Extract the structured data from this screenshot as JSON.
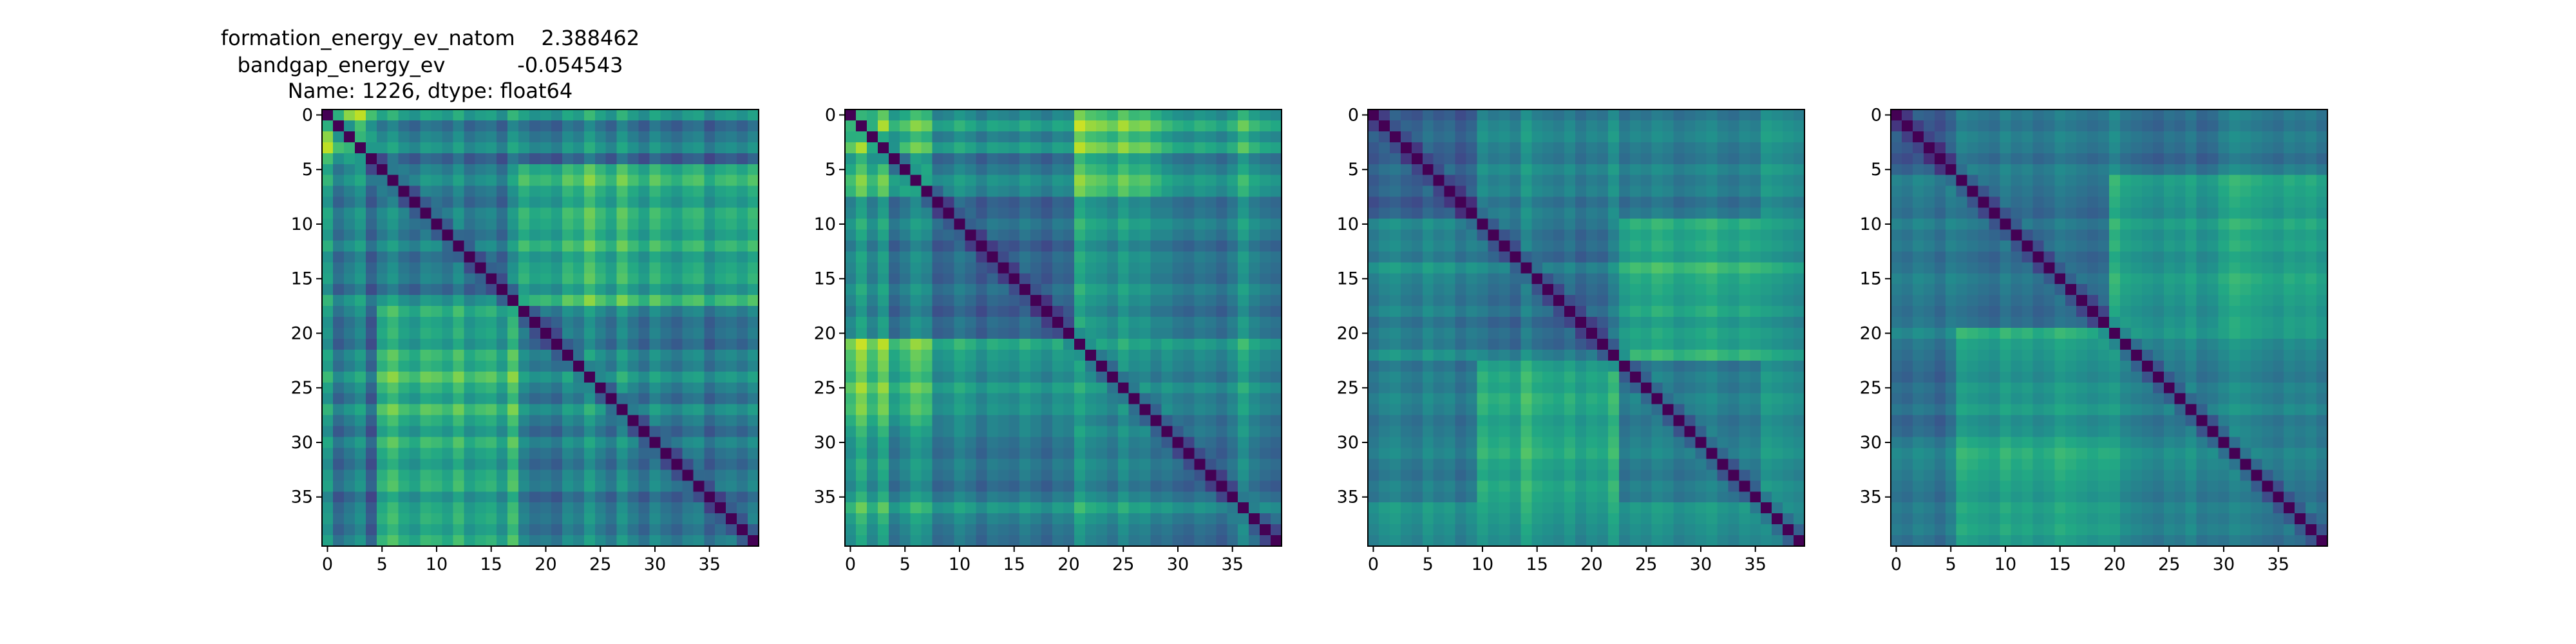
{
  "title_lines": [
    "formation_energy_ev_natom    2.388462",
    "bandgap_energy_ev           -0.054543",
    "Name: 1226, dtype: float64"
  ],
  "chart_data": [
    {
      "type": "heatmap",
      "colormap": "viridis",
      "matrix_size": 40,
      "value_range": [
        0,
        1
      ],
      "diagonal_value": 0,
      "xticks": [
        0,
        5,
        10,
        15,
        20,
        25,
        30,
        35
      ],
      "yticks": [
        0,
        5,
        10,
        15,
        20,
        25,
        30,
        35
      ],
      "block_boundaries": [
        5,
        18
      ],
      "block_levels": [
        [
          0.6,
          0.38,
          0.35
        ],
        [
          0.38,
          0.4,
          0.58
        ],
        [
          0.35,
          0.58,
          0.38
        ]
      ],
      "row_offsets": [
        0.35,
        -0.05,
        0.1,
        0.25,
        -0.15,
        0.05,
        0.2,
        0.0,
        -0.1,
        0.1,
        0.05,
        -0.05,
        0.15,
        -0.1,
        0.0,
        0.05,
        -0.15,
        0.2,
        0.1,
        -0.05,
        0.0,
        -0.1,
        0.15,
        0.05,
        0.3,
        0.1,
        -0.05,
        0.25,
        0.05,
        -0.1,
        0.15,
        0.0,
        -0.1,
        0.05,
        0.1,
        -0.15,
        0.0,
        0.05,
        -0.05,
        0.1
      ]
    },
    {
      "type": "heatmap",
      "colormap": "viridis",
      "matrix_size": 40,
      "value_range": [
        0,
        1
      ],
      "diagonal_value": 0,
      "xticks": [
        0,
        5,
        10,
        15,
        20,
        25,
        30,
        35
      ],
      "yticks": [
        0,
        5,
        10,
        15,
        20,
        25,
        30,
        35
      ],
      "block_boundaries": [
        8,
        21,
        29
      ],
      "block_levels": [
        [
          0.55,
          0.4,
          0.62,
          0.45
        ],
        [
          0.4,
          0.32,
          0.48,
          0.38
        ],
        [
          0.62,
          0.48,
          0.45,
          0.42
        ],
        [
          0.45,
          0.38,
          0.42,
          0.35
        ]
      ],
      "row_offsets": [
        0.1,
        0.35,
        0.05,
        0.3,
        -0.15,
        0.0,
        0.2,
        0.1,
        -0.05,
        0.0,
        0.15,
        0.05,
        -0.1,
        0.05,
        0.0,
        -0.05,
        0.1,
        0.0,
        -0.1,
        0.05,
        0.0,
        0.25,
        0.1,
        0.05,
        -0.05,
        0.15,
        0.0,
        0.05,
        -0.1,
        0.1,
        0.0,
        -0.05,
        0.05,
        0.0,
        -0.1,
        0.05,
        0.3,
        0.1,
        0.0,
        -0.05
      ]
    },
    {
      "type": "heatmap",
      "colormap": "viridis",
      "matrix_size": 40,
      "value_range": [
        0,
        1
      ],
      "diagonal_value": 0,
      "xticks": [
        0,
        5,
        10,
        15,
        20,
        25,
        30,
        35
      ],
      "yticks": [
        0,
        5,
        10,
        15,
        20,
        25,
        30,
        35
      ],
      "block_boundaries": [
        10,
        23,
        36
      ],
      "block_levels": [
        [
          0.3,
          0.4,
          0.4,
          0.45
        ],
        [
          0.4,
          0.3,
          0.55,
          0.45
        ],
        [
          0.4,
          0.55,
          0.4,
          0.45
        ],
        [
          0.45,
          0.45,
          0.45,
          0.4
        ]
      ],
      "row_offsets": [
        -0.05,
        0.05,
        0.1,
        0.0,
        -0.05,
        0.1,
        0.0,
        0.05,
        -0.1,
        0.0,
        0.15,
        0.05,
        0.1,
        0.0,
        0.25,
        0.1,
        0.05,
        0.0,
        0.1,
        -0.05,
        0.05,
        0.0,
        0.2,
        -0.05,
        0.05,
        0.0,
        0.1,
        0.05,
        -0.05,
        0.0,
        0.05,
        0.1,
        0.0,
        -0.05,
        0.05,
        0.0,
        0.15,
        0.1,
        0.05,
        0.0
      ]
    },
    {
      "type": "heatmap",
      "colormap": "viridis",
      "matrix_size": 40,
      "value_range": [
        0,
        1
      ],
      "diagonal_value": 0,
      "xticks": [
        0,
        5,
        10,
        15,
        20,
        25,
        30,
        35
      ],
      "yticks": [
        0,
        5,
        10,
        15,
        20,
        25,
        30,
        35
      ],
      "block_boundaries": [
        6,
        20,
        30
      ],
      "block_levels": [
        [
          0.3,
          0.4,
          0.35,
          0.4
        ],
        [
          0.4,
          0.35,
          0.5,
          0.55
        ],
        [
          0.35,
          0.5,
          0.4,
          0.42
        ],
        [
          0.4,
          0.55,
          0.42,
          0.38
        ]
      ],
      "row_offsets": [
        0.0,
        -0.05,
        0.05,
        0.0,
        -0.1,
        0.05,
        0.1,
        0.05,
        0.0,
        -0.05,
        0.1,
        0.0,
        0.05,
        -0.05,
        0.0,
        0.1,
        0.05,
        0.0,
        -0.05,
        0.0,
        0.25,
        0.1,
        0.05,
        0.0,
        -0.05,
        0.05,
        0.0,
        0.1,
        -0.05,
        0.0,
        0.05,
        0.15,
        0.1,
        0.05,
        0.0,
        -0.05,
        0.05,
        0.0,
        0.05,
        -0.05
      ]
    }
  ]
}
